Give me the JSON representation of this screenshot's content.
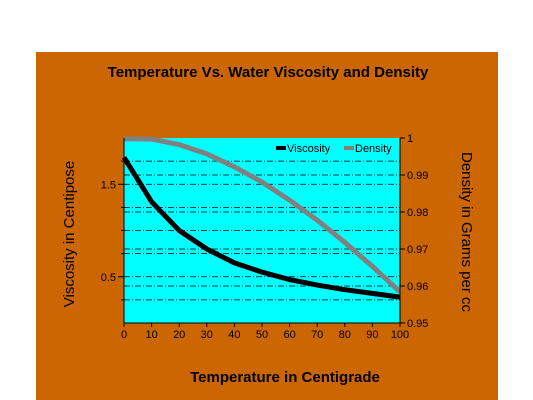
{
  "colors": {
    "background": "#CC6600",
    "plot_area": "#00FFFF",
    "viscosity_line": "#000000",
    "density_line": "#808080",
    "grid": "#000000"
  },
  "chart_data": {
    "type": "line",
    "title": "Temperature Vs. Water Viscosity and Density",
    "xlabel": "Temperature in Centigrade",
    "ylabel_left": "Viscosity in Centipose",
    "ylabel_right": "Density in Grams per  cc",
    "x": [
      0,
      10,
      20,
      30,
      40,
      50,
      60,
      70,
      80,
      90,
      100
    ],
    "xlim": [
      0,
      100
    ],
    "x_ticks": [
      "0",
      "10",
      "20",
      "30",
      "40",
      "50",
      "60",
      "70",
      "80",
      "90",
      "100"
    ],
    "ylim_left": [
      0,
      2
    ],
    "y_ticks_left": [
      "0.5",
      "1.5"
    ],
    "ylim_right": [
      0.95,
      1.0
    ],
    "y_ticks_right": [
      "0.95",
      "0.96",
      "0.97",
      "0.98",
      "0.99",
      "1"
    ],
    "grid": "dash-dot horizontal",
    "legend_position": "top-right",
    "series": [
      {
        "name": "Viscosity",
        "axis": "left",
        "values": [
          1.79,
          1.31,
          1.0,
          0.8,
          0.65,
          0.55,
          0.47,
          0.41,
          0.36,
          0.32,
          0.28
        ]
      },
      {
        "name": "Density",
        "axis": "right",
        "values": [
          0.9998,
          0.9997,
          0.9982,
          0.9957,
          0.9922,
          0.9881,
          0.9832,
          0.9778,
          0.9718,
          0.9653,
          0.9584
        ]
      }
    ]
  }
}
